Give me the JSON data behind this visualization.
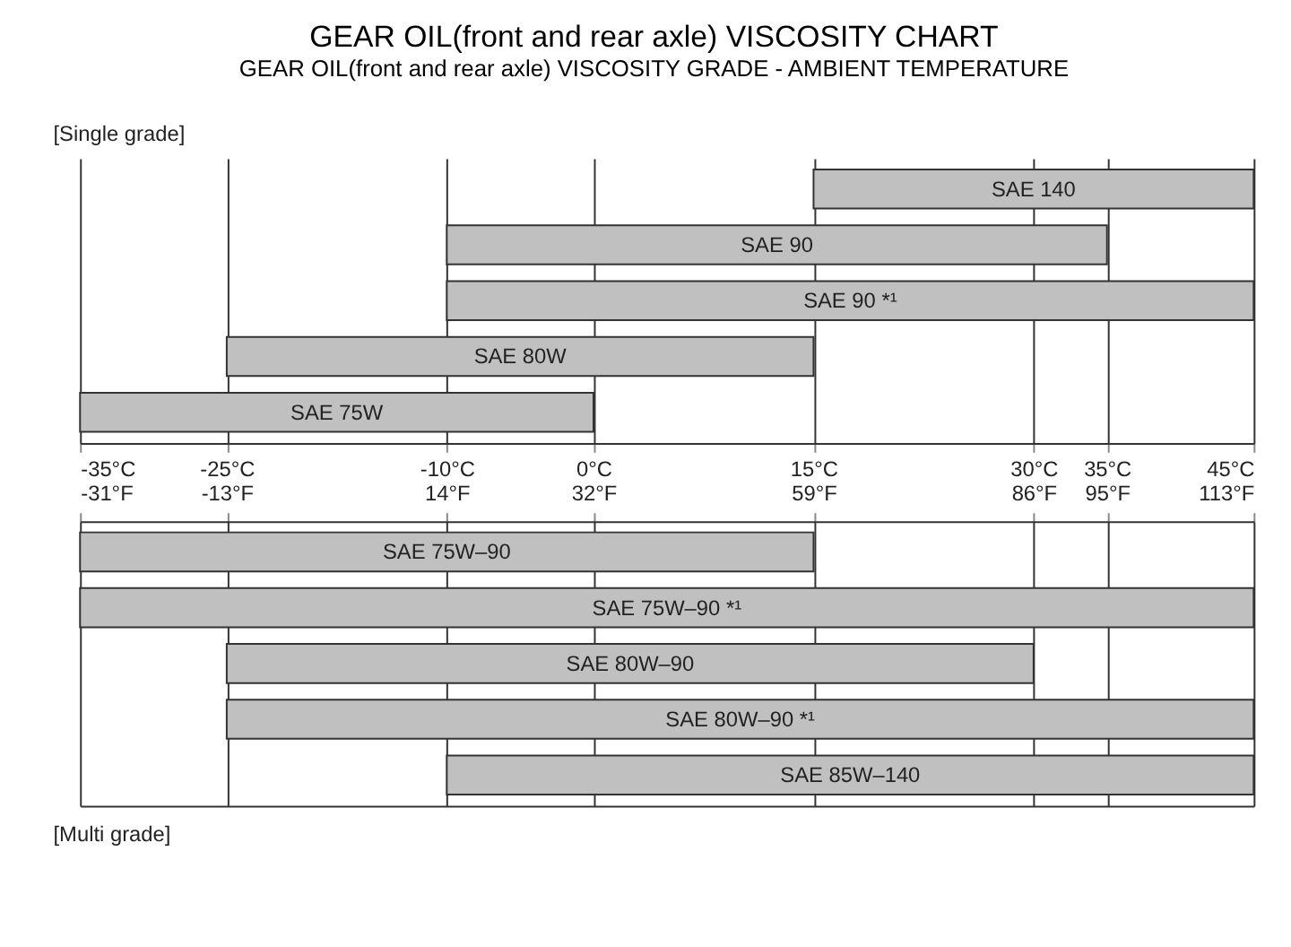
{
  "chart_data": [
    {
      "type": "bar",
      "orientation": "horizontal",
      "title": "GEAR OIL(front and rear axle) VISCOSITY CHART",
      "subtitle": "GEAR OIL(front and rear axle) VISCOSITY GRADE - AMBIENT TEMPERATURE",
      "categories": [
        null,
        null,
        null,
        null,
        null
      ],
      "value_labels": [
        "SAE 140",
        "SAE 90",
        "SAE 90 *¹",
        "SAE 80W",
        "SAE 75W"
      ],
      "base": [
        15,
        -10,
        -10,
        -25,
        -35
      ],
      "values": [
        30,
        45,
        55,
        40,
        35
      ],
      "color": "#c0c0c0",
      "xlim": [
        -35,
        45
      ],
      "xticks": [
        {
          "value": -35,
          "label": "-35°C"
        },
        {
          "value": -25,
          "label": "-25°C"
        },
        {
          "value": -10,
          "label": "-10°C"
        },
        {
          "value": 0,
          "label": "0°C"
        },
        {
          "value": 15,
          "label": "15°C"
        },
        {
          "value": 30,
          "label": "30°C"
        },
        {
          "value": 35,
          "label": "35°C"
        },
        {
          "value": 45,
          "label": "45°C"
        }
      ],
      "grid": "x",
      "tick_labels": "x",
      "annotations": [
        "[Single grade]"
      ]
    },
    {
      "type": "bar",
      "orientation": "horizontal",
      "categories": [
        null,
        null,
        null,
        null,
        null
      ],
      "value_labels": [
        "SAE 75W–90",
        "SAE 75W–90 *¹",
        "SAE 80W–90",
        "SAE 80W–90 *¹",
        "SAE 85W–140"
      ],
      "base": [
        -35,
        -35,
        -25,
        -25,
        -10
      ],
      "values": [
        50,
        80,
        55,
        70,
        55
      ],
      "color": "#c0c0c0",
      "xlim": [
        -35,
        45
      ],
      "xticks": [
        -35,
        -25,
        -10,
        0,
        15,
        30,
        35,
        45
      ],
      "x2lim": [
        -31,
        113
      ],
      "x2ticks": [
        {
          "value": -31,
          "label": "-31°F"
        },
        {
          "value": -13,
          "label": "-13°F"
        },
        {
          "value": 14,
          "label": "14°F"
        },
        {
          "value": 32,
          "label": "32°F"
        },
        {
          "value": 59,
          "label": "59°F"
        },
        {
          "value": 86,
          "label": "86°F"
        },
        {
          "value": 95,
          "label": "95°F"
        },
        {
          "value": 113,
          "label": "113°F"
        }
      ],
      "grid": "x",
      "tick_labels": false,
      "annotations": [
        "[Multi grade]"
      ]
    }
  ]
}
